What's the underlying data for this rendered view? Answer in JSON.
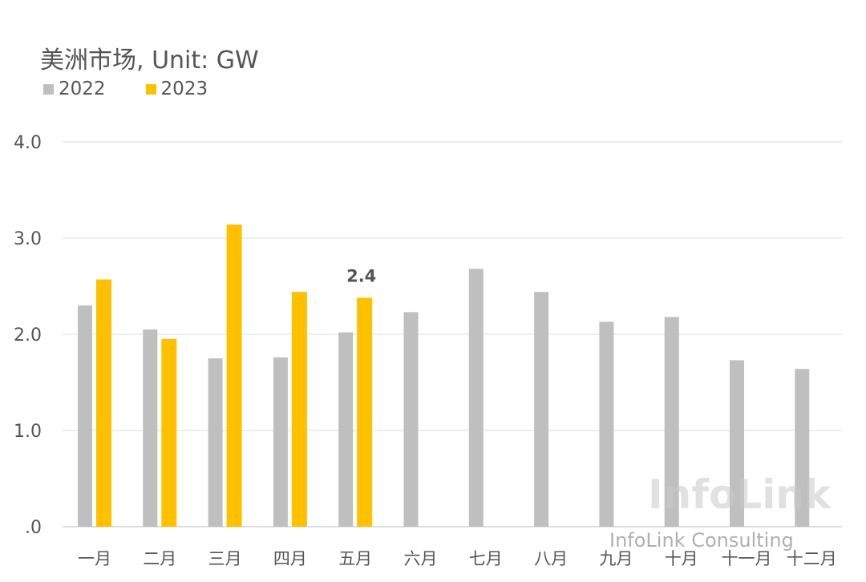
{
  "chart_data": {
    "type": "bar",
    "title": "美洲市场, Unit: GW",
    "categories": [
      "一月",
      "二月",
      "三月",
      "四月",
      "五月",
      "六月",
      "七月",
      "八月",
      "九月",
      "十月",
      "十一月",
      "十二月"
    ],
    "series": [
      {
        "name": "2022",
        "color": "#bfbfbf",
        "values": [
          2.3,
          2.05,
          1.75,
          1.76,
          2.02,
          2.23,
          2.68,
          2.44,
          2.13,
          2.18,
          1.73,
          1.64
        ]
      },
      {
        "name": "2023",
        "color": "#ffc000",
        "values": [
          2.57,
          1.95,
          3.14,
          2.44,
          2.38,
          null,
          null,
          null,
          null,
          null,
          null,
          null
        ]
      }
    ],
    "ylim": [
      0,
      4
    ],
    "yticks": [
      {
        "v": 0,
        "label": ".0"
      },
      {
        "v": 1,
        "label": "1.0"
      },
      {
        "v": 2,
        "label": "2.0"
      },
      {
        "v": 3,
        "label": "3.0"
      },
      {
        "v": 4,
        "label": "4.0"
      }
    ],
    "annotations": [
      {
        "category": "五月",
        "text": "2.4"
      }
    ],
    "grid": true,
    "legend": "top-left"
  },
  "watermark": {
    "logo": "InfoLink",
    "caption": "InfoLink Consulting"
  }
}
